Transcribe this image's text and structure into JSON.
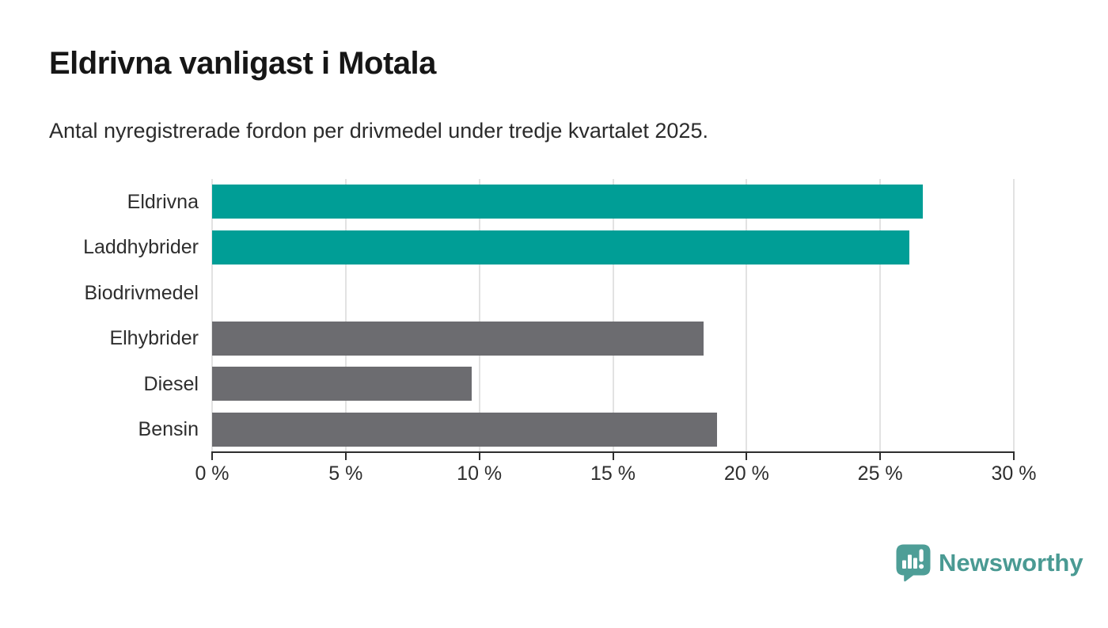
{
  "header": {
    "title": "Eldrivna vanligast i Motala",
    "subtitle": "Antal nyregistrerade fordon per drivmedel under tredje kvartalet 2025."
  },
  "chart_data": {
    "type": "bar",
    "orientation": "horizontal",
    "title": "Eldrivna vanligast i Motala",
    "subtitle": "Antal nyregistrerade fordon per drivmedel under tredje kvartalet 2025.",
    "categories": [
      "Eldrivna",
      "Laddhybrider",
      "Biodrivmedel",
      "Elhybrider",
      "Diesel",
      "Bensin"
    ],
    "values": [
      26.6,
      26.1,
      0,
      18.4,
      9.7,
      18.9
    ],
    "bar_colors": [
      "#009e96",
      "#009e96",
      "#6c6c70",
      "#6c6c70",
      "#6c6c70",
      "#6c6c70"
    ],
    "xlim": [
      0,
      30
    ],
    "x_tick_values": [
      0,
      5,
      10,
      15,
      20,
      25,
      30
    ],
    "x_tick_labels": [
      "0 %",
      "5 %",
      "10 %",
      "15 %",
      "20 %",
      "25 %",
      "30 %"
    ],
    "grid": "vertical",
    "legend_position": "none",
    "xlabel": "",
    "ylabel": ""
  },
  "colors": {
    "highlight_teal": "#009e96",
    "neutral_gray": "#6c6c70",
    "axis": "#2e2e2e",
    "gridline": "#e2e2e2",
    "background": "#ffffff",
    "logo_teal": "#4a9a93"
  },
  "footer": {
    "brand": "Newsworthy",
    "logo_icon": "speech-bubble-bar-chart"
  }
}
